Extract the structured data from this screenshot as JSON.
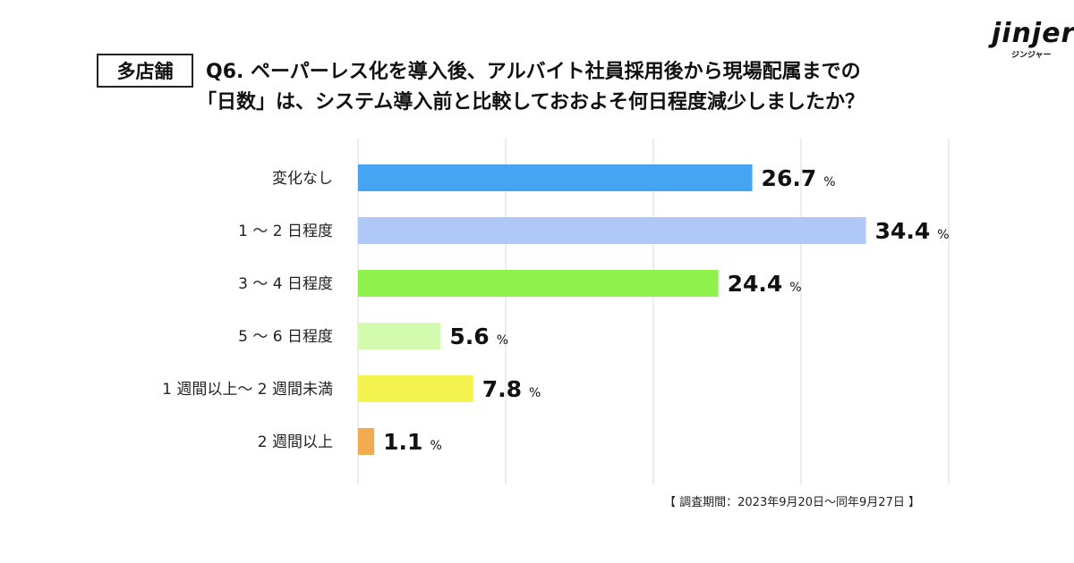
{
  "logo": {
    "wordmark": "jinjer",
    "kana": "ジンジャー"
  },
  "tag": "多店舗",
  "title": {
    "line1": "Q6. ペーパーレス化を導入後、アルバイト社員採用後から現場配属までの",
    "line2": "「日数」は、システム導入前と比較しておおよそ何日程度減少しましたか？"
  },
  "source": "【 調査期間：2023年9月20日〜同年9月27日 】",
  "chart_data": {
    "type": "bar",
    "orientation": "horizontal",
    "categories": [
      "変化なし",
      "1 〜 2 日程度",
      "3 〜 4 日程度",
      "5 〜 6 日程度",
      "1 週間以上〜 2 週間未満",
      "2 週間以上"
    ],
    "values": [
      26.7,
      34.4,
      24.4,
      5.6,
      7.8,
      1.1
    ],
    "value_labels": [
      "26.7",
      "34.4",
      "24.4",
      "5.6",
      "7.8",
      "1.1"
    ],
    "unit": "%",
    "colors": [
      "#45a5f2",
      "#afc8f8",
      "#8ff24c",
      "#d2fbb0",
      "#f4f24c",
      "#f2ab4f"
    ],
    "xlim": [
      0,
      40
    ],
    "grid": true,
    "legend": "none"
  }
}
